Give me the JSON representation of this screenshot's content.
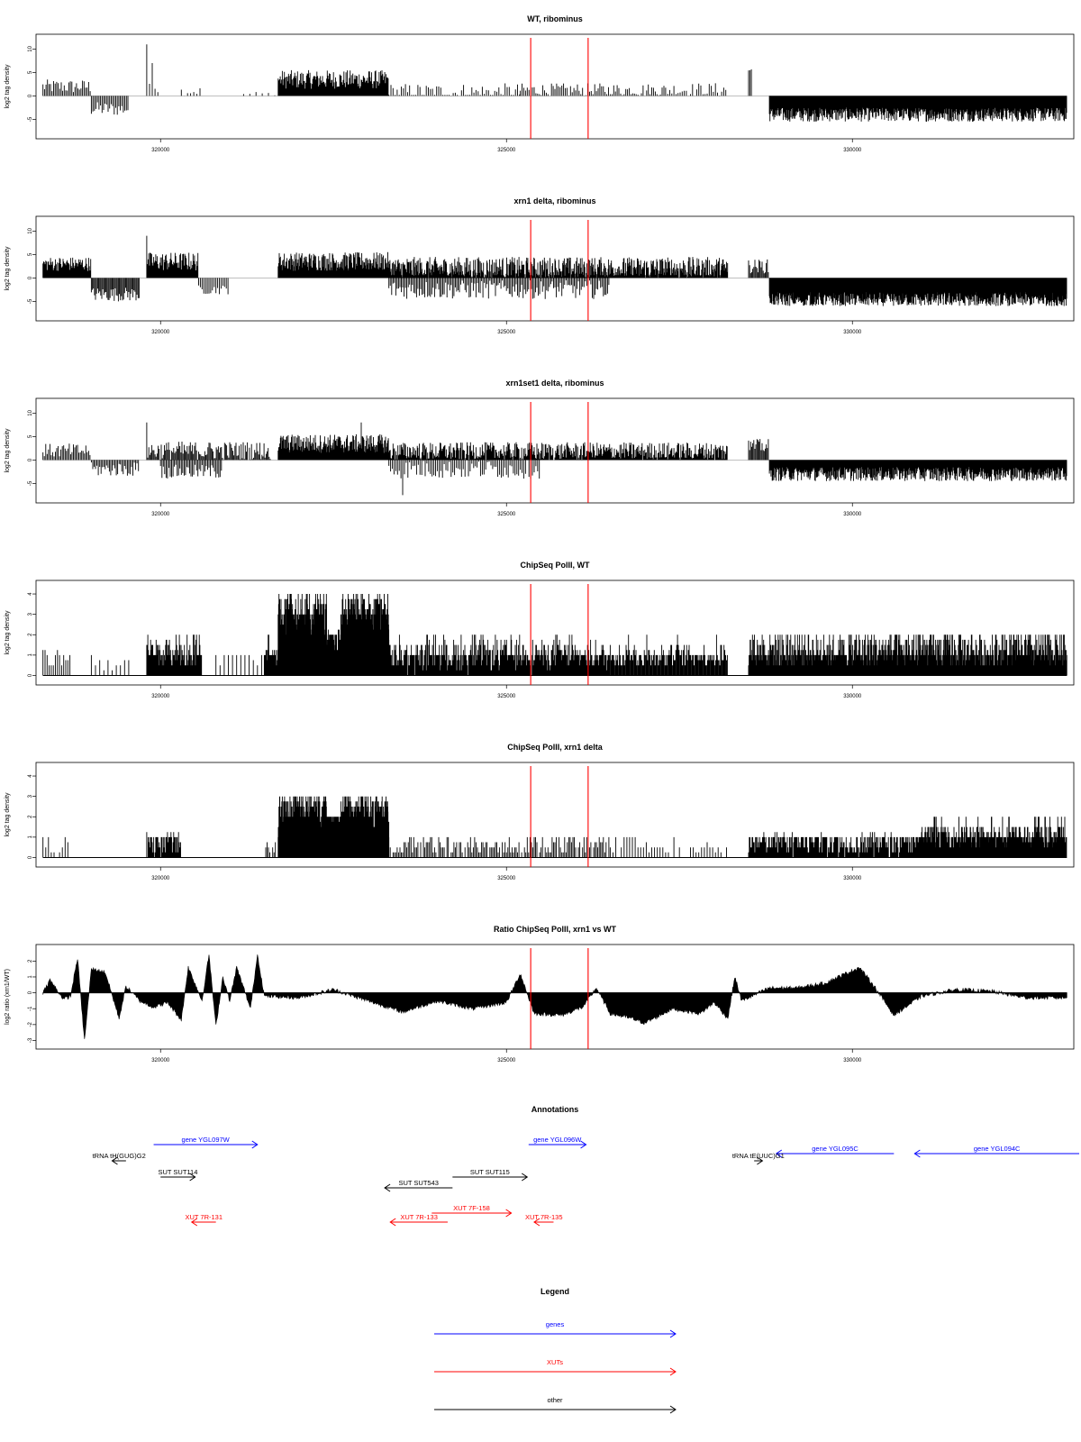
{
  "colors": {
    "genes": "#0000ff",
    "xuts": "#ff0000",
    "other": "#000000",
    "marker": "#ff0000",
    "bars": "#000000",
    "baseline": "#999999"
  },
  "chart_data": [
    {
      "type": "bar",
      "title": "WT, ribominus",
      "xlabel": "",
      "ylabel": "log2 tag density",
      "xlim": [
        318200,
        333200
      ],
      "ylim": [
        -8,
        12
      ],
      "yticks": [
        -5,
        0,
        5,
        10
      ],
      "xticks": [
        320000,
        325000,
        330000
      ],
      "markers": [
        325350,
        326180
      ],
      "regions": [
        {
          "x0": 318300,
          "x1": 319000,
          "mean": 2,
          "var": 1.5,
          "step": 22
        },
        {
          "x0": 319000,
          "x1": 319550,
          "mean": -2.8,
          "var": 1.5,
          "step": 22
        },
        {
          "x0": 319800,
          "x1": 320000,
          "mean": 3,
          "var": 3,
          "step": 40
        },
        {
          "x0": 320300,
          "x1": 320600,
          "mean": 1,
          "var": 1,
          "step": 45
        },
        {
          "x0": 321200,
          "x1": 321700,
          "mean": 0.4,
          "var": 0.6,
          "step": 90
        },
        {
          "x0": 321700,
          "x1": 323300,
          "mean": 3.5,
          "var": 2,
          "step": 10
        },
        {
          "x0": 323300,
          "x1": 325200,
          "mean": 0.7,
          "var": 2,
          "step": 30
        },
        {
          "x0": 325200,
          "x1": 327300,
          "mean": 1.2,
          "var": 1.5,
          "step": 25
        },
        {
          "x0": 327300,
          "x1": 328200,
          "mean": 1.3,
          "var": 1.5,
          "step": 30
        },
        {
          "x0": 328500,
          "x1": 328550,
          "mean": 5.5,
          "var": 0.5,
          "step": 20
        },
        {
          "x0": 328800,
          "x1": 333100,
          "mean": -4,
          "var": 1.5,
          "step": 8
        }
      ],
      "spikes": [
        {
          "x": 319800,
          "y": 11
        },
        {
          "x": 319880,
          "y": 7
        }
      ]
    },
    {
      "type": "bar",
      "title": "xrn1 delta, ribominus",
      "xlabel": "",
      "ylabel": "log2 tag density",
      "xlim": [
        318200,
        333200
      ],
      "ylim": [
        -8,
        12
      ],
      "yticks": [
        -5,
        0,
        5,
        10
      ],
      "xticks": [
        320000,
        325000,
        330000
      ],
      "markers": [
        325350,
        326180
      ],
      "regions": [
        {
          "x0": 318300,
          "x1": 319000,
          "mean": 3,
          "var": 1.5,
          "step": 10
        },
        {
          "x0": 319000,
          "x1": 319700,
          "mean": -3.5,
          "var": 1.5,
          "step": 15
        },
        {
          "x0": 319800,
          "x1": 320550,
          "mean": 3.5,
          "var": 2,
          "step": 10
        },
        {
          "x0": 320550,
          "x1": 321000,
          "mean": -2.5,
          "var": 1,
          "step": 25
        },
        {
          "x0": 321700,
          "x1": 323300,
          "mean": 3.5,
          "var": 2,
          "step": 8
        },
        {
          "x0": 323300,
          "x1": 328200,
          "mean": 2,
          "var": 2.5,
          "step": 8
        },
        {
          "x0": 323300,
          "x1": 326500,
          "mean": -2.5,
          "var": 2,
          "step": 20
        },
        {
          "x0": 328500,
          "x1": 328800,
          "mean": 2.5,
          "var": 1.5,
          "step": 15
        },
        {
          "x0": 328800,
          "x1": 333100,
          "mean": -4.5,
          "var": 1.5,
          "step": 6
        }
      ],
      "spikes": [
        {
          "x": 319800,
          "y": 9
        }
      ]
    },
    {
      "type": "bar",
      "title": "xrn1set1 delta, ribominus",
      "xlabel": "",
      "ylabel": "log2 tag density",
      "xlim": [
        318200,
        333200
      ],
      "ylim": [
        -8,
        12
      ],
      "yticks": [
        -5,
        0,
        5,
        10
      ],
      "xticks": [
        320000,
        325000,
        330000
      ],
      "markers": [
        325350,
        326180
      ],
      "regions": [
        {
          "x0": 318300,
          "x1": 319000,
          "mean": 2,
          "var": 1.5,
          "step": 20
        },
        {
          "x0": 319000,
          "x1": 319700,
          "mean": -2,
          "var": 1.5,
          "step": 20
        },
        {
          "x0": 319800,
          "x1": 321600,
          "mean": 2,
          "var": 2,
          "step": 15
        },
        {
          "x0": 320000,
          "x1": 320900,
          "mean": -2.5,
          "var": 1.5,
          "step": 20
        },
        {
          "x0": 321700,
          "x1": 323300,
          "mean": 3.5,
          "var": 2,
          "step": 8
        },
        {
          "x0": 323300,
          "x1": 328200,
          "mean": 1.8,
          "var": 2,
          "step": 10
        },
        {
          "x0": 323300,
          "x1": 325500,
          "mean": -2,
          "var": 2,
          "step": 25
        },
        {
          "x0": 328500,
          "x1": 328800,
          "mean": 3,
          "var": 1.5,
          "step": 15
        },
        {
          "x0": 328800,
          "x1": 333100,
          "mean": -3,
          "var": 1.5,
          "step": 8
        }
      ],
      "spikes": [
        {
          "x": 319800,
          "y": 8
        },
        {
          "x": 322900,
          "y": 8
        },
        {
          "x": 323500,
          "y": -7.5
        }
      ]
    },
    {
      "type": "bar",
      "title": "ChipSeq PolII, WT",
      "xlabel": "",
      "ylabel": "log2 tag density",
      "xlim": [
        318200,
        333200
      ],
      "ylim": [
        -0.2,
        4.4
      ],
      "yticks": [
        0,
        1,
        2,
        3,
        4
      ],
      "xticks": [
        320000,
        325000,
        330000
      ],
      "markers": [
        325350,
        326180
      ],
      "regions": [
        {
          "x0": 318300,
          "x1": 318700,
          "mean": 0.8,
          "var": 0.5,
          "step": 30
        },
        {
          "x0": 319000,
          "x1": 319600,
          "mean": 0.7,
          "var": 0.4,
          "step": 60
        },
        {
          "x0": 319800,
          "x1": 320600,
          "mean": 1.1,
          "var": 0.7,
          "step": 8
        },
        {
          "x0": 320800,
          "x1": 321500,
          "mean": 0.8,
          "var": 0.3,
          "step": 60
        },
        {
          "x0": 321500,
          "x1": 321700,
          "mean": 1.0,
          "var": 0.4,
          "step": 8
        },
        {
          "x0": 321700,
          "x1": 322400,
          "mean": 2.6,
          "var": 1.2,
          "step": 3
        },
        {
          "x0": 322400,
          "x1": 322600,
          "mean": 1.6,
          "var": 0.6,
          "step": 3
        },
        {
          "x0": 322600,
          "x1": 323300,
          "mean": 2.7,
          "var": 1.2,
          "step": 3
        },
        {
          "x0": 323300,
          "x1": 326500,
          "mean": 1.0,
          "var": 0.7,
          "step": 9
        },
        {
          "x0": 326500,
          "x1": 328200,
          "mean": 1.0,
          "var": 0.6,
          "step": 12
        },
        {
          "x0": 328500,
          "x1": 333100,
          "mean": 1.2,
          "var": 0.8,
          "step": 7
        }
      ],
      "spikes": []
    },
    {
      "type": "bar",
      "title": "ChipSeq PolII, xrn1 delta",
      "xlabel": "",
      "ylabel": "log2 tag density",
      "xlim": [
        318200,
        333200
      ],
      "ylim": [
        -0.2,
        4.4
      ],
      "yticks": [
        0,
        1,
        2,
        3,
        4
      ],
      "xticks": [
        320000,
        325000,
        330000
      ],
      "markers": [
        325350,
        326180
      ],
      "regions": [
        {
          "x0": 318300,
          "x1": 318700,
          "mean": 0.4,
          "var": 0.3,
          "step": 40
        },
        {
          "x0": 319800,
          "x1": 320300,
          "mean": 0.7,
          "var": 0.5,
          "step": 10
        },
        {
          "x0": 321500,
          "x1": 321700,
          "mean": 0.5,
          "var": 0.3,
          "step": 20
        },
        {
          "x0": 321700,
          "x1": 322400,
          "mean": 2.0,
          "var": 1.0,
          "step": 3
        },
        {
          "x0": 322400,
          "x1": 322600,
          "mean": 1.5,
          "var": 0.5,
          "step": 3
        },
        {
          "x0": 322600,
          "x1": 323300,
          "mean": 2.0,
          "var": 0.9,
          "step": 3
        },
        {
          "x0": 323300,
          "x1": 326500,
          "mean": 0.5,
          "var": 0.4,
          "step": 20
        },
        {
          "x0": 326500,
          "x1": 328200,
          "mean": 0.4,
          "var": 0.3,
          "step": 40
        },
        {
          "x0": 328500,
          "x1": 331000,
          "mean": 0.7,
          "var": 0.5,
          "step": 10
        },
        {
          "x0": 331000,
          "x1": 333100,
          "mean": 1.0,
          "var": 0.6,
          "step": 6
        }
      ],
      "spikes": []
    },
    {
      "type": "area",
      "title": "Ratio ChipSeq PolII, xrn1 vs WT",
      "xlabel": "",
      "ylabel": "log2 ratio (xrn1/WT)",
      "xlim": [
        318200,
        333200
      ],
      "ylim": [
        -3.2,
        2.7
      ],
      "yticks": [
        -3,
        -2,
        -1,
        0,
        1,
        2
      ],
      "xticks": [
        320000,
        325000,
        330000
      ],
      "markers": [
        325350,
        326180
      ],
      "anchors": [
        [
          318300,
          0
        ],
        [
          318400,
          0.8
        ],
        [
          318500,
          0.2
        ],
        [
          318600,
          -0.4
        ],
        [
          318700,
          -0.2
        ],
        [
          318800,
          2.2
        ],
        [
          318900,
          -3.0
        ],
        [
          319000,
          1.5
        ],
        [
          319200,
          1.3
        ],
        [
          319400,
          -1.6
        ],
        [
          319500,
          0.4
        ],
        [
          319700,
          -0.5
        ],
        [
          319900,
          -0.9
        ],
        [
          320100,
          -0.6
        ],
        [
          320300,
          -1.7
        ],
        [
          320400,
          1.6
        ],
        [
          320600,
          -0.5
        ],
        [
          320700,
          2.4
        ],
        [
          320800,
          -2.1
        ],
        [
          320900,
          1.0
        ],
        [
          321000,
          -0.5
        ],
        [
          321100,
          1.6
        ],
        [
          321300,
          -1.0
        ],
        [
          321400,
          2.4
        ],
        [
          321500,
          -0.2
        ],
        [
          322000,
          -0.3
        ],
        [
          322500,
          0.2
        ],
        [
          323000,
          -0.5
        ],
        [
          323500,
          -1.2
        ],
        [
          324000,
          -0.5
        ],
        [
          324500,
          -1.0
        ],
        [
          325000,
          -0.6
        ],
        [
          325200,
          1.2
        ],
        [
          325400,
          -1.3
        ],
        [
          325800,
          -1.4
        ],
        [
          326100,
          -0.9
        ],
        [
          326300,
          0.3
        ],
        [
          326500,
          -1.3
        ],
        [
          326800,
          -1.6
        ],
        [
          327000,
          -1.9
        ],
        [
          327400,
          -1.0
        ],
        [
          327800,
          -1.3
        ],
        [
          328000,
          -0.6
        ],
        [
          328200,
          -1.6
        ],
        [
          328300,
          1.0
        ],
        [
          328400,
          -0.5
        ],
        [
          328800,
          0.3
        ],
        [
          329200,
          0.3
        ],
        [
          329600,
          0.6
        ],
        [
          330100,
          1.6
        ],
        [
          330300,
          0.5
        ],
        [
          330600,
          -1.4
        ],
        [
          331000,
          -0.2
        ],
        [
          331500,
          0.2
        ],
        [
          332000,
          0.1
        ],
        [
          332500,
          -0.3
        ],
        [
          333100,
          -0.3
        ]
      ]
    }
  ],
  "annotations": {
    "title": "Annotations",
    "xlim": [
      318200,
      333200
    ],
    "features": [
      {
        "label": "gene YGL097W",
        "kind": "genes",
        "x0": 319900,
        "x1": 321400,
        "row": 0
      },
      {
        "label": "gene YGL096W",
        "kind": "genes",
        "x0": 325320,
        "x1": 326150,
        "row": 0
      },
      {
        "label": "gene YGL095C",
        "kind": "genes",
        "x0": 330600,
        "x1": 328900,
        "row": 1
      },
      {
        "label": "gene YGL094C",
        "kind": "genes",
        "x0": 333600,
        "x1": 330900,
        "row": 1
      },
      {
        "label": "tRNA tH(GUG)G2",
        "kind": "other",
        "x0": 319500,
        "x1": 319300,
        "row": 2
      },
      {
        "label": "tRNA tE(UUC)G1",
        "kind": "other",
        "x0": 328580,
        "x1": 328700,
        "row": 2
      },
      {
        "label": "SUT SUT114",
        "kind": "other",
        "x0": 320000,
        "x1": 320500,
        "row": 3
      },
      {
        "label": "SUT SUT115",
        "kind": "other",
        "x0": 324220,
        "x1": 325300,
        "row": 3
      },
      {
        "label": "SUT SUT543",
        "kind": "other",
        "x0": 324220,
        "x1": 323240,
        "row": 4
      },
      {
        "label": "XUT 7F-158",
        "kind": "xuts",
        "x0": 323920,
        "x1": 325070,
        "row": 5
      },
      {
        "label": "XUT 7R-131",
        "kind": "xuts",
        "x0": 320800,
        "x1": 320450,
        "row": 6
      },
      {
        "label": "XUT 7R-133",
        "kind": "xuts",
        "x0": 324150,
        "x1": 323320,
        "row": 6
      },
      {
        "label": "XUT 7R-135",
        "kind": "xuts",
        "x0": 325680,
        "x1": 325400,
        "row": 6
      }
    ]
  },
  "legend": {
    "title": "Legend",
    "items": [
      {
        "label": "genes",
        "kind": "genes"
      },
      {
        "label": "XUTs",
        "kind": "xuts"
      },
      {
        "label": "other",
        "kind": "other"
      }
    ]
  }
}
